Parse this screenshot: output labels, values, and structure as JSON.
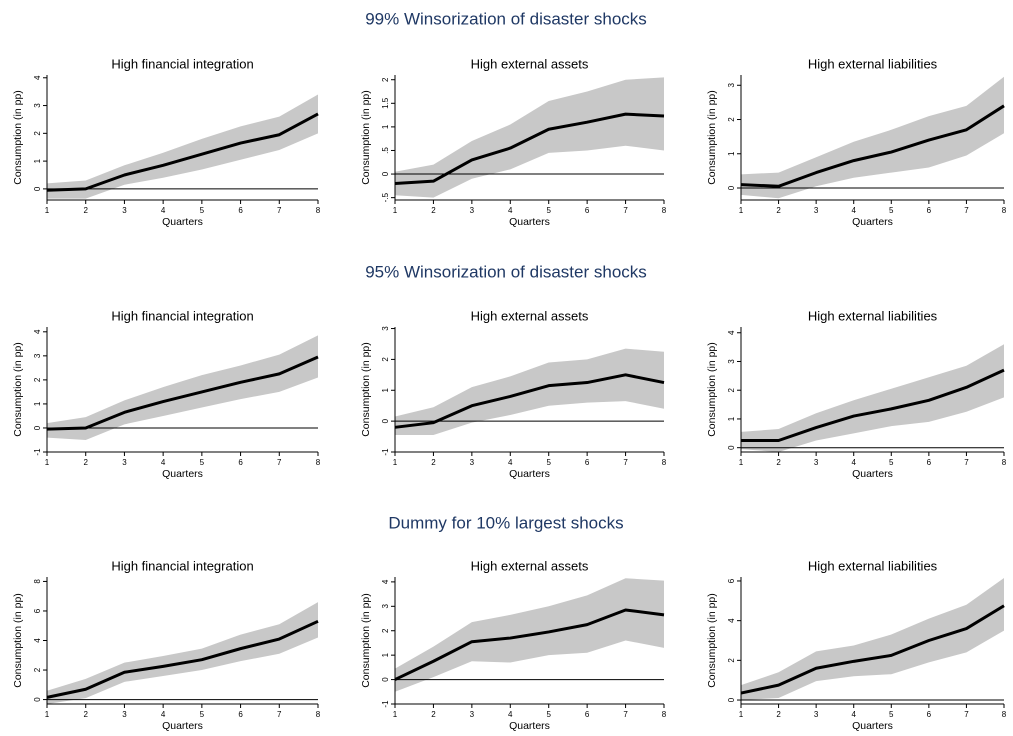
{
  "section_titles": [
    "99% Winsorization of disaster shocks",
    "95% Winsorization of disaster shocks",
    "Dummy for 10% largest shocks"
  ],
  "chart_data": [
    {
      "type": "line",
      "title": "High financial integration",
      "xlabel": "Quarters",
      "ylabel": "Consumption (in pp)",
      "x": [
        1,
        2,
        3,
        4,
        5,
        6,
        7,
        8
      ],
      "xlim": [
        1,
        8
      ],
      "xticks": [
        1,
        2,
        3,
        4,
        5,
        6,
        7,
        8
      ],
      "ylim": [
        -0.4,
        4.1
      ],
      "yticks": [
        0,
        1,
        2,
        3,
        4
      ],
      "band_color": "#c8c8c8",
      "zero_line": true,
      "series": [
        {
          "color": "#000000",
          "values": [
            -0.05,
            0.0,
            0.5,
            0.85,
            1.25,
            1.65,
            1.95,
            2.7
          ],
          "lower": [
            -0.35,
            -0.35,
            0.15,
            0.4,
            0.7,
            1.05,
            1.4,
            2.0
          ],
          "upper": [
            0.2,
            0.3,
            0.85,
            1.3,
            1.8,
            2.25,
            2.6,
            3.4
          ]
        }
      ]
    },
    {
      "type": "line",
      "title": "High external assets",
      "xlabel": "Quarters",
      "ylabel": "Consumption (in pp)",
      "x": [
        1,
        2,
        3,
        4,
        5,
        6,
        7,
        8
      ],
      "xlim": [
        1,
        8
      ],
      "xticks": [
        1,
        2,
        3,
        4,
        5,
        6,
        7,
        8
      ],
      "ylim": [
        -0.55,
        2.1
      ],
      "yticks": [
        {
          "value": -0.5,
          "label": "-.5"
        },
        0,
        {
          "value": 0.5,
          "label": ".5"
        },
        1,
        1.5,
        2
      ],
      "band_color": "#c8c8c8",
      "zero_line": true,
      "series": [
        {
          "color": "#000000",
          "values": [
            -0.2,
            -0.15,
            0.3,
            0.55,
            0.95,
            1.1,
            1.27,
            1.23
          ],
          "lower": [
            -0.45,
            -0.5,
            -0.1,
            0.1,
            0.45,
            0.5,
            0.6,
            0.5
          ],
          "upper": [
            0.05,
            0.2,
            0.7,
            1.05,
            1.55,
            1.75,
            2.0,
            2.05
          ]
        }
      ]
    },
    {
      "type": "line",
      "title": "High external liabilities",
      "xlabel": "Quarters",
      "ylabel": "Consumption (in pp)",
      "x": [
        1,
        2,
        3,
        4,
        5,
        6,
        7,
        8
      ],
      "xlim": [
        1,
        8
      ],
      "xticks": [
        1,
        2,
        3,
        4,
        5,
        6,
        7,
        8
      ],
      "ylim": [
        -0.35,
        3.3
      ],
      "yticks": [
        0,
        1,
        2,
        3
      ],
      "band_color": "#c8c8c8",
      "zero_line": true,
      "series": [
        {
          "color": "#000000",
          "values": [
            0.1,
            0.05,
            0.45,
            0.8,
            1.05,
            1.4,
            1.7,
            2.4
          ],
          "lower": [
            -0.2,
            -0.3,
            0.05,
            0.3,
            0.45,
            0.6,
            0.95,
            1.6
          ],
          "upper": [
            0.4,
            0.45,
            0.9,
            1.35,
            1.7,
            2.1,
            2.4,
            3.25
          ]
        }
      ]
    },
    {
      "type": "line",
      "title": "High financial integration",
      "xlabel": "Quarters",
      "ylabel": "Consumption (in pp)",
      "x": [
        1,
        2,
        3,
        4,
        5,
        6,
        7,
        8
      ],
      "xlim": [
        1,
        8
      ],
      "xticks": [
        1,
        2,
        3,
        4,
        5,
        6,
        7,
        8
      ],
      "ylim": [
        -1,
        4.2
      ],
      "yticks": [
        -1,
        0,
        1,
        2,
        3,
        4
      ],
      "band_color": "#c8c8c8",
      "zero_line": true,
      "series": [
        {
          "color": "#000000",
          "values": [
            -0.05,
            0.0,
            0.65,
            1.1,
            1.5,
            1.9,
            2.25,
            2.95
          ],
          "lower": [
            -0.4,
            -0.5,
            0.15,
            0.5,
            0.85,
            1.2,
            1.5,
            2.1
          ],
          "upper": [
            0.2,
            0.45,
            1.15,
            1.7,
            2.2,
            2.6,
            3.05,
            3.85
          ]
        }
      ]
    },
    {
      "type": "line",
      "title": "High external assets",
      "xlabel": "Quarters",
      "ylabel": "Consumption (in pp)",
      "x": [
        1,
        2,
        3,
        4,
        5,
        6,
        7,
        8
      ],
      "xlim": [
        1,
        8
      ],
      "xticks": [
        1,
        2,
        3,
        4,
        5,
        6,
        7,
        8
      ],
      "ylim": [
        -1,
        3.05
      ],
      "yticks": [
        -1,
        0,
        1,
        2,
        3
      ],
      "band_color": "#c8c8c8",
      "zero_line": true,
      "series": [
        {
          "color": "#000000",
          "values": [
            -0.2,
            -0.05,
            0.5,
            0.8,
            1.15,
            1.25,
            1.5,
            1.25
          ],
          "lower": [
            -0.45,
            -0.45,
            -0.05,
            0.2,
            0.5,
            0.6,
            0.65,
            0.4
          ],
          "upper": [
            0.15,
            0.45,
            1.1,
            1.45,
            1.9,
            2.0,
            2.35,
            2.25
          ]
        }
      ]
    },
    {
      "type": "line",
      "title": "High external liabilities",
      "xlabel": "Quarters",
      "ylabel": "Consumption (in pp)",
      "x": [
        1,
        2,
        3,
        4,
        5,
        6,
        7,
        8
      ],
      "xlim": [
        1,
        8
      ],
      "xticks": [
        1,
        2,
        3,
        4,
        5,
        6,
        7,
        8
      ],
      "ylim": [
        -0.15,
        4.2
      ],
      "yticks": [
        0,
        1,
        2,
        3,
        4
      ],
      "band_color": "#c8c8c8",
      "zero_line": true,
      "series": [
        {
          "color": "#000000",
          "values": [
            0.25,
            0.25,
            0.7,
            1.1,
            1.35,
            1.65,
            2.1,
            2.7
          ],
          "lower": [
            -0.05,
            -0.15,
            0.25,
            0.5,
            0.75,
            0.9,
            1.25,
            1.75
          ],
          "upper": [
            0.55,
            0.65,
            1.2,
            1.65,
            2.05,
            2.45,
            2.85,
            3.6
          ]
        }
      ]
    },
    {
      "type": "line",
      "title": "High financial integration",
      "xlabel": "Quarters",
      "ylabel": "Consumption (in pp)",
      "x": [
        1,
        2,
        3,
        4,
        5,
        6,
        7,
        8
      ],
      "xlim": [
        1,
        8
      ],
      "xticks": [
        1,
        2,
        3,
        4,
        5,
        6,
        7,
        8
      ],
      "ylim": [
        -0.3,
        8.3
      ],
      "yticks": [
        0,
        2,
        4,
        6,
        8
      ],
      "band_color": "#c8c8c8",
      "zero_line": true,
      "series": [
        {
          "color": "#000000",
          "values": [
            0.15,
            0.7,
            1.85,
            2.25,
            2.7,
            3.45,
            4.1,
            5.3
          ],
          "lower": [
            -0.3,
            0.1,
            1.2,
            1.6,
            2.0,
            2.6,
            3.1,
            4.2
          ],
          "upper": [
            0.6,
            1.4,
            2.5,
            2.95,
            3.45,
            4.4,
            5.1,
            6.6
          ]
        }
      ]
    },
    {
      "type": "line",
      "title": "High external assets",
      "xlabel": "Quarters",
      "ylabel": "Consumption (in pp)",
      "x": [
        1,
        2,
        3,
        4,
        5,
        6,
        7,
        8
      ],
      "xlim": [
        1,
        8
      ],
      "xticks": [
        1,
        2,
        3,
        4,
        5,
        6,
        7,
        8
      ],
      "ylim": [
        -1,
        4.2
      ],
      "yticks": [
        -1,
        0,
        1,
        2,
        3,
        4
      ],
      "band_color": "#c8c8c8",
      "zero_line": true,
      "series": [
        {
          "color": "#000000",
          "values": [
            0.0,
            0.75,
            1.55,
            1.7,
            1.95,
            2.25,
            2.85,
            2.65
          ],
          "lower": [
            -0.5,
            0.1,
            0.75,
            0.7,
            1.0,
            1.1,
            1.6,
            1.3
          ],
          "upper": [
            0.45,
            1.35,
            2.35,
            2.65,
            3.0,
            3.45,
            4.15,
            4.05
          ]
        }
      ]
    },
    {
      "type": "line",
      "title": "High external liabilities",
      "xlabel": "Quarters",
      "ylabel": "Consumption (in pp)",
      "x": [
        1,
        2,
        3,
        4,
        5,
        6,
        7,
        8
      ],
      "xlim": [
        1,
        8
      ],
      "xticks": [
        1,
        2,
        3,
        4,
        5,
        6,
        7,
        8
      ],
      "ylim": [
        -0.2,
        6.2
      ],
      "yticks": [
        0,
        2,
        4,
        6
      ],
      "band_color": "#c8c8c8",
      "zero_line": true,
      "series": [
        {
          "color": "#000000",
          "values": [
            0.35,
            0.75,
            1.6,
            1.95,
            2.25,
            3.0,
            3.6,
            4.75
          ],
          "lower": [
            0.0,
            0.1,
            0.95,
            1.2,
            1.3,
            1.9,
            2.4,
            3.5
          ],
          "upper": [
            0.75,
            1.4,
            2.45,
            2.75,
            3.3,
            4.1,
            4.8,
            6.15
          ]
        }
      ]
    }
  ]
}
